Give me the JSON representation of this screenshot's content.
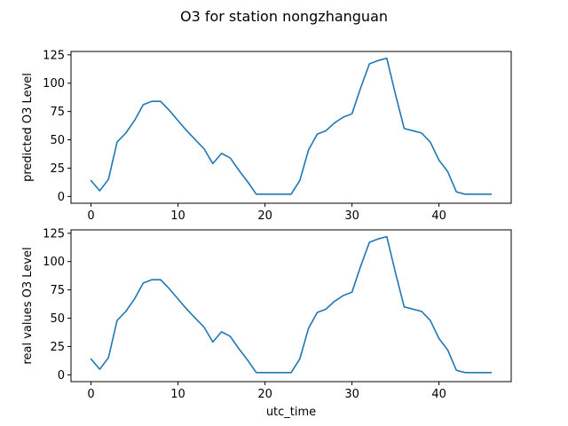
{
  "chart_title": "O3 for station nongzhanguan",
  "chart_data": [
    {
      "type": "line",
      "title": "",
      "xlabel": "",
      "ylabel": "predicted O3 Level",
      "xlim": [
        -2.3,
        48.3
      ],
      "ylim": [
        -6,
        128
      ],
      "xticks": [
        0,
        10,
        20,
        30,
        40
      ],
      "yticks": [
        0,
        25,
        50,
        75,
        100,
        125
      ],
      "grid": false,
      "series": [
        {
          "color": "#1f77b4",
          "x": [
            0,
            1,
            2,
            3,
            4,
            5,
            6,
            7,
            8,
            9,
            10,
            11,
            12,
            13,
            14,
            15,
            16,
            17,
            18,
            19,
            20,
            21,
            22,
            23,
            24,
            25,
            26,
            27,
            28,
            29,
            30,
            31,
            32,
            33,
            34,
            35,
            36,
            37,
            38,
            39,
            40,
            41,
            42,
            43,
            44,
            45,
            46
          ],
          "values": [
            14,
            5,
            15,
            48,
            56,
            67,
            81,
            84,
            84,
            76,
            67,
            58,
            50,
            42,
            29,
            38,
            34,
            23,
            13,
            2,
            2,
            2,
            2,
            2,
            14,
            41,
            55,
            58,
            65,
            70,
            73,
            96,
            117,
            120,
            122,
            90,
            60,
            58,
            56,
            48,
            32,
            22,
            4,
            2,
            2,
            2,
            2
          ]
        }
      ]
    },
    {
      "type": "line",
      "title": "",
      "xlabel": "utc_time",
      "ylabel": "real values O3 Level",
      "xlim": [
        -2.3,
        48.3
      ],
      "ylim": [
        -6,
        128
      ],
      "xticks": [
        0,
        10,
        20,
        30,
        40
      ],
      "yticks": [
        0,
        25,
        50,
        75,
        100,
        125
      ],
      "grid": false,
      "series": [
        {
          "color": "#1f77b4",
          "x": [
            0,
            1,
            2,
            3,
            4,
            5,
            6,
            7,
            8,
            9,
            10,
            11,
            12,
            13,
            14,
            15,
            16,
            17,
            18,
            19,
            20,
            21,
            22,
            23,
            24,
            25,
            26,
            27,
            28,
            29,
            30,
            31,
            32,
            33,
            34,
            35,
            36,
            37,
            38,
            39,
            40,
            41,
            42,
            43,
            44,
            45,
            46
          ],
          "values": [
            14,
            5,
            15,
            48,
            56,
            67,
            81,
            84,
            84,
            76,
            67,
            58,
            50,
            42,
            29,
            38,
            34,
            23,
            13,
            2,
            2,
            2,
            2,
            2,
            14,
            41,
            55,
            58,
            65,
            70,
            73,
            96,
            117,
            120,
            122,
            90,
            60,
            58,
            56,
            48,
            32,
            22,
            4,
            2,
            2,
            2,
            2
          ]
        }
      ]
    }
  ]
}
